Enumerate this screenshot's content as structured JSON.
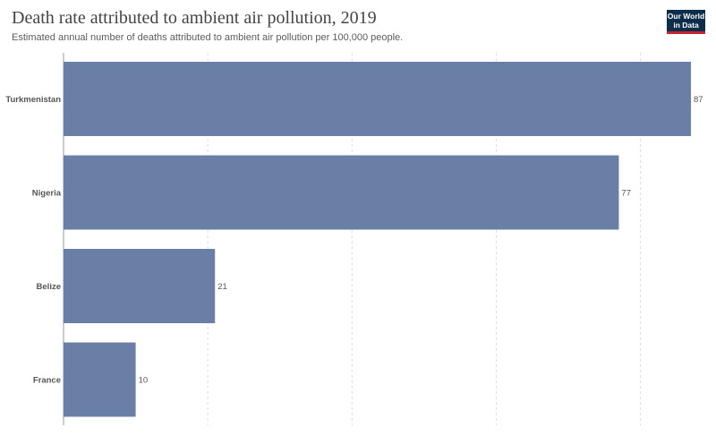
{
  "header": {
    "title": "Death rate attributed to ambient air pollution, 2019",
    "subtitle": "Estimated annual number of deaths attributed to ambient air pollution per 100,000 people."
  },
  "logo": {
    "line1": "Our World",
    "line2": "in Data",
    "colors": {
      "background": "#0c2d4b",
      "accent": "#c1272d"
    }
  },
  "chart_data": {
    "type": "bar",
    "orientation": "horizontal",
    "categories": [
      "Turkmenistan",
      "Nigeria",
      "Belize",
      "France"
    ],
    "values": [
      87,
      77,
      21,
      10
    ],
    "data_labels": [
      "87",
      "77",
      "21",
      "10"
    ],
    "xlim": [
      0,
      87
    ],
    "gridline_values": [
      0,
      20,
      40,
      60,
      80
    ],
    "grid": true,
    "legend": "none",
    "bar_color": "#6a7fa6"
  }
}
